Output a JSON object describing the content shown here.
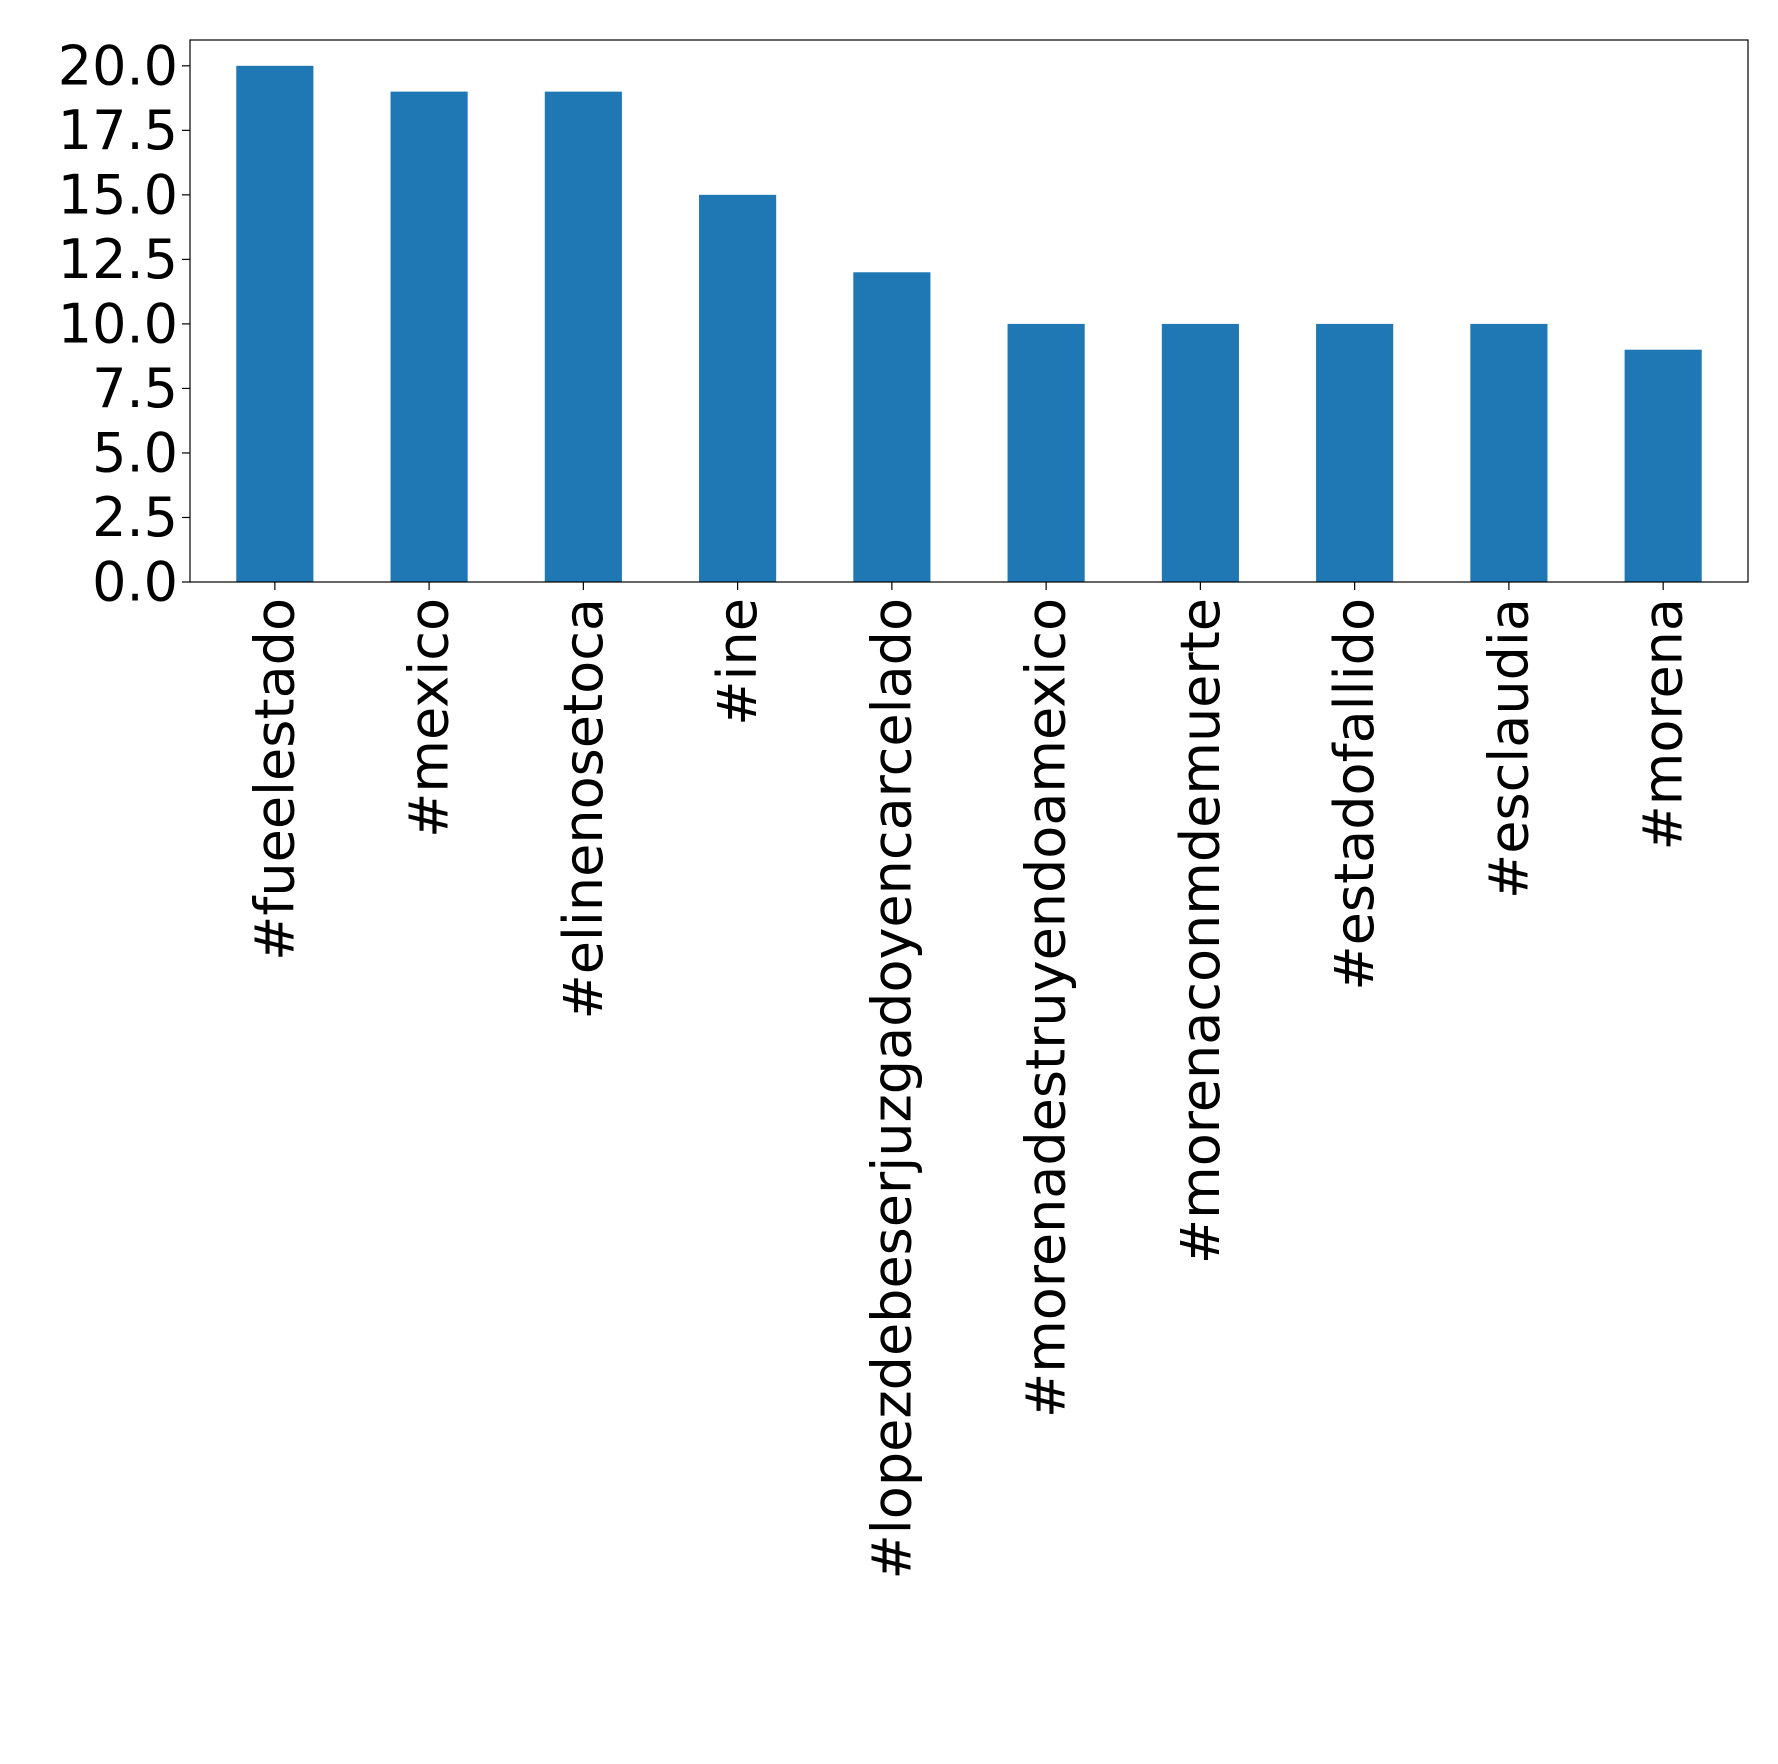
{
  "chart_data": {
    "type": "bar",
    "title": "",
    "xlabel": "",
    "ylabel": "",
    "categories": [
      "#fueelestado",
      "#mexico",
      "#elinenosetoca",
      "#ine",
      "#lopezdebeserjuzgadoyencarcelado",
      "#morenadestruyendoamexico",
      "#morenaconmdemuerte",
      "#estadofallido",
      "#esclaudia",
      "#morena"
    ],
    "values": [
      20,
      19,
      19,
      15,
      12,
      10,
      10,
      10,
      10,
      9
    ],
    "ylim": [
      0,
      21
    ],
    "yticks": [
      "0.0",
      "2.5",
      "5.0",
      "7.5",
      "10.0",
      "12.5",
      "15.0",
      "17.5",
      "20.0"
    ],
    "bar_color": "#1f77b4",
    "grid": false,
    "legend": "none"
  }
}
